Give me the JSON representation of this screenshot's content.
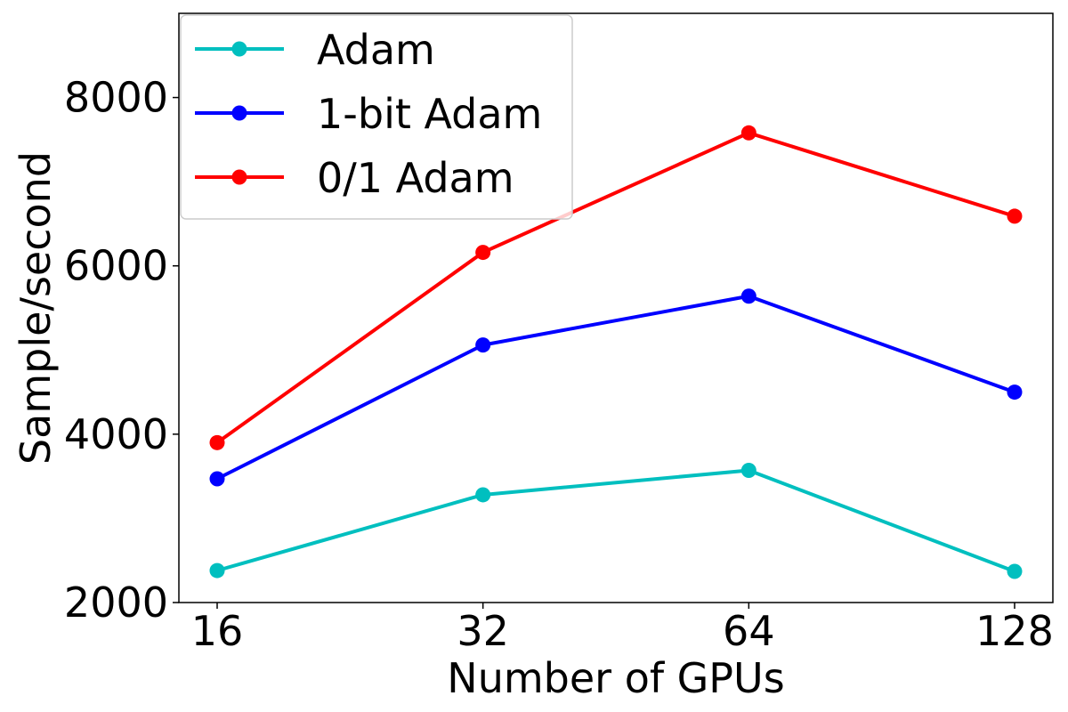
{
  "chart_data": {
    "type": "line",
    "x": [
      16,
      32,
      64,
      128
    ],
    "x_tick_labels": [
      "16",
      "32",
      "64",
      "128"
    ],
    "x_scale": "log2",
    "xlabel": "Number of GPUs",
    "ylabel": "Sample/second",
    "ylim": [
      2000,
      9000
    ],
    "y_ticks": [
      2000,
      4000,
      6000,
      8000
    ],
    "y_tick_labels": [
      "2000",
      "4000",
      "6000",
      "8000"
    ],
    "grid": false,
    "legend_position": "top-left",
    "series": [
      {
        "name": "Adam",
        "color": "#00bfbf",
        "values": [
          2380,
          3280,
          3570,
          2370
        ]
      },
      {
        "name": "1-bit Adam",
        "color": "#0000ff",
        "values": [
          3470,
          5060,
          5640,
          4500
        ]
      },
      {
        "name": "0/1 Adam",
        "color": "#ff0000",
        "values": [
          3900,
          6160,
          7580,
          6590
        ]
      }
    ]
  }
}
